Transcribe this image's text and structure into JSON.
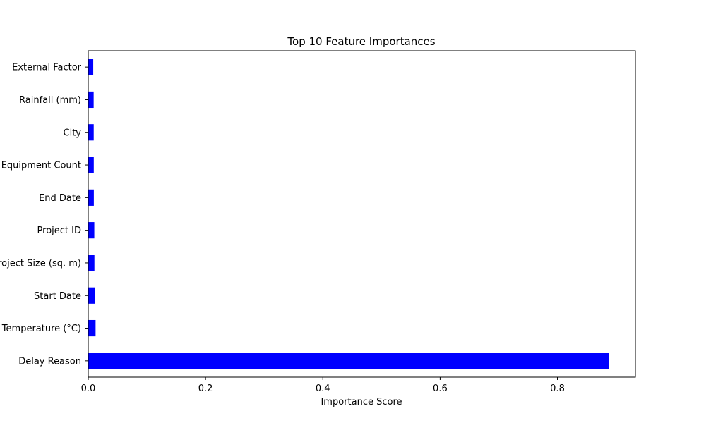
{
  "chart_data": {
    "type": "bar",
    "orientation": "horizontal",
    "title": "Top 10 Feature Importances",
    "xlabel": "Importance Score",
    "ylabel": "",
    "categories": [
      "Delay Reason",
      "Temperature (°C)",
      "Start Date",
      "Project Size (sq. m)",
      "Project ID",
      "End Date",
      "Equipment Count",
      "City",
      "Rainfall (mm)",
      "External Factor"
    ],
    "values": [
      0.888,
      0.0125,
      0.0115,
      0.0105,
      0.0103,
      0.0095,
      0.0094,
      0.0093,
      0.0092,
      0.0085
    ],
    "xlim": [
      0,
      0.933
    ],
    "xticks": [
      0.0,
      0.2,
      0.4,
      0.6,
      0.8
    ],
    "xtick_labels": [
      "0.0",
      "0.2",
      "0.4",
      "0.6",
      "0.8"
    ],
    "bar_color": "#0000ff",
    "grid": false,
    "legend": "none"
  }
}
